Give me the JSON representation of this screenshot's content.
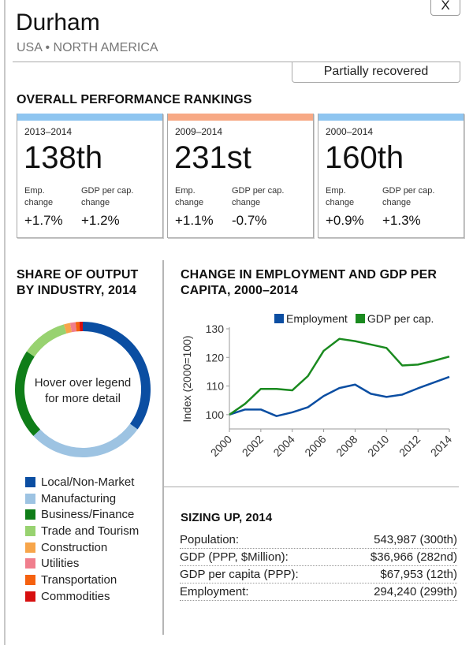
{
  "header": {
    "close_label": "X",
    "city": "Durham",
    "location": "USA • NORTH AMERICA",
    "status": "Partially recovered"
  },
  "rankings": {
    "title": "OVERALL PERFORMANCE RANKINGS",
    "emp_label": "Emp. change",
    "gdp_label": "GDP per cap. change",
    "cards": [
      {
        "period": "2013–2014",
        "rank": "138th",
        "emp_change": "+1.7%",
        "gdp_change": "+1.2%",
        "color": "#8ec5f0"
      },
      {
        "period": "2009–2014",
        "rank": "231st",
        "emp_change": "+1.1%",
        "gdp_change": "-0.7%",
        "color": "#f7a985"
      },
      {
        "period": "2000–2014",
        "rank": "160th",
        "emp_change": "+0.9%",
        "gdp_change": "+1.3%",
        "color": "#8ec5f0"
      }
    ]
  },
  "share": {
    "title_line1": "SHARE OF OUTPUT",
    "title_line2": "BY INDUSTRY, 2014",
    "center_line1": "Hover over legend",
    "center_line2": "for more detail"
  },
  "trend": {
    "title_line1": "CHANGE IN EMPLOYMENT AND GDP PER",
    "title_line2": "CAPITA, 2000–2014"
  },
  "sizing": {
    "title": "SIZING UP, 2014",
    "rows": [
      {
        "label": "Population:",
        "value": "543,987 (300th)"
      },
      {
        "label": "GDP (PPP, $Million):",
        "value": "$36,966 (282nd)"
      },
      {
        "label": "GDP per capita (PPP):",
        "value": "$67,953 (12th)"
      },
      {
        "label": "Employment:",
        "value": "294,240 (299th)"
      }
    ]
  },
  "chart_data": [
    {
      "type": "pie",
      "title": "SHARE OF OUTPUT BY INDUSTRY, 2014",
      "annotation": "Hover over legend for more detail",
      "legend_position": "bottom",
      "categories": [
        "Local/Non-Market",
        "Manufacturing",
        "Business/Finance",
        "Trade and Tourism",
        "Construction",
        "Utilities",
        "Transportation",
        "Commodities"
      ],
      "values": [
        35,
        28,
        21.5,
        11,
        1.5,
        1.3,
        0.9,
        0.8
      ],
      "colors": [
        "#0b4ea2",
        "#9dc3e2",
        "#0f7d18",
        "#98d270",
        "#f7a54a",
        "#f07e8d",
        "#f5610f",
        "#d70f0f"
      ]
    },
    {
      "type": "line",
      "title": "CHANGE IN EMPLOYMENT AND GDP PER CAPITA, 2000–2014",
      "xlabel": "",
      "ylabel": "Index (2000=100)",
      "x": [
        2000,
        2001,
        2002,
        2003,
        2004,
        2005,
        2006,
        2007,
        2008,
        2009,
        2010,
        2011,
        2012,
        2013,
        2014
      ],
      "xticks": [
        "2000",
        "2002",
        "2004",
        "2006",
        "2008",
        "2010",
        "2012",
        "2014"
      ],
      "yticks": [
        "100",
        "110",
        "120",
        "130"
      ],
      "ylim": [
        95,
        130
      ],
      "xlim": [
        2000,
        2014
      ],
      "legend_position": "top-right",
      "series": [
        {
          "name": "Employment",
          "color": "#0b4ea2",
          "values": [
            100,
            101.8,
            101.8,
            99.5,
            100.8,
            102.6,
            106.5,
            109.3,
            110.5,
            107.3,
            106.2,
            107.0,
            109.2,
            111.2,
            113.2
          ]
        },
        {
          "name": "GDP per cap.",
          "color": "#1a8a1f",
          "values": [
            100,
            103.8,
            109.0,
            109.0,
            108.5,
            113.5,
            122.3,
            126.5,
            125.7,
            124.5,
            123.3,
            117.2,
            117.5,
            118.8,
            120.3
          ]
        }
      ]
    }
  ]
}
